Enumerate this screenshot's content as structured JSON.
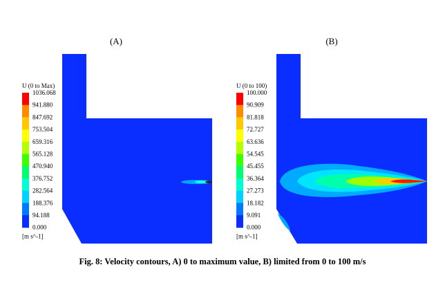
{
  "panels": [
    {
      "label": "(A)",
      "legend": {
        "title": "U (0 to Max)",
        "labels": [
          "1036.068",
          "941.880",
          "847.692",
          "753.504",
          "659.316",
          "565.128",
          "470.940",
          "376.752",
          "282.564",
          "188.376",
          "94.188",
          "0.000"
        ],
        "unit": "[m s^-1]"
      }
    },
    {
      "label": "(B)",
      "legend": {
        "title": "U (0 to 100)",
        "labels": [
          "100.000",
          "90.909",
          "81.818",
          "72.727",
          "63.636",
          "54.545",
          "45.455",
          "36.364",
          "27.273",
          "18.182",
          "9.091",
          "0.000"
        ],
        "unit": "[m s^-1]"
      }
    }
  ],
  "caption": "Fig. 8: Velocity contours, A) 0 to maximum value, B) limited from 0 to 100 m/s"
}
